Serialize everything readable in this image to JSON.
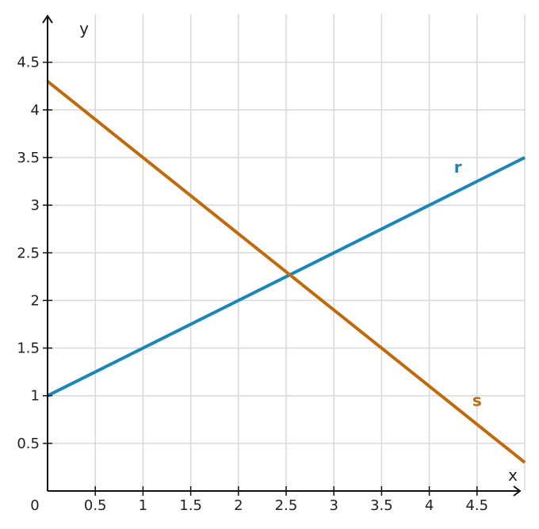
{
  "chart_data": {
    "type": "line",
    "xlabel": "x",
    "ylabel": "y",
    "origin_label": "0",
    "xlim": [
      0,
      5
    ],
    "ylim": [
      0,
      5
    ],
    "grid": true,
    "x_ticks": [
      0.5,
      1,
      1.5,
      2,
      2.5,
      3,
      3.5,
      4,
      4.5
    ],
    "x_tick_labels": [
      "0.5",
      "1",
      "1.5",
      "2",
      "2.5",
      "3",
      "3.5",
      "4",
      "4.5"
    ],
    "y_ticks": [
      0.5,
      1,
      1.5,
      2,
      2.5,
      3,
      3.5,
      4,
      4.5
    ],
    "y_tick_labels": [
      "0.5",
      "1",
      "1.5",
      "2",
      "2.5",
      "3",
      "3.5",
      "4",
      "4.5"
    ],
    "series": [
      {
        "name": "r",
        "color": "#1a87b8",
        "x": [
          0,
          5
        ],
        "y": [
          1,
          3.5
        ],
        "label_at": [
          4.3,
          3.4
        ]
      },
      {
        "name": "s",
        "color": "#bf6a0d",
        "x": [
          0,
          5
        ],
        "y": [
          4.3,
          0.3
        ],
        "label_at": [
          4.5,
          0.95
        ]
      }
    ]
  }
}
